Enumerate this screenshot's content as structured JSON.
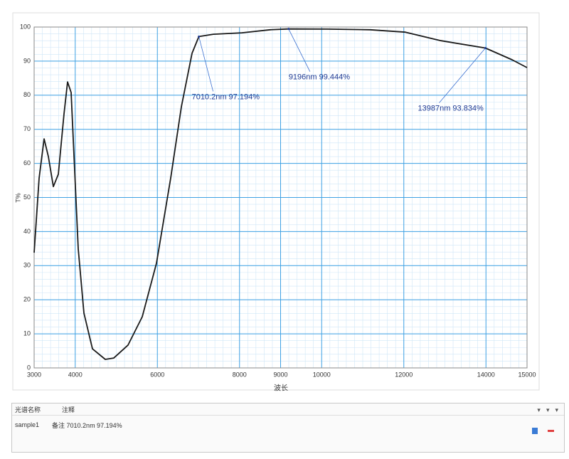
{
  "chart_data": {
    "type": "line",
    "x_label": "波长",
    "y_label": "T%",
    "x": [
      3000,
      3121,
      3242,
      3346,
      3468,
      3589,
      3727,
      3814,
      3900,
      3987,
      4074,
      4212,
      4420,
      4732,
      4939,
      5286,
      5632,
      5978,
      6325,
      6584,
      6844,
      7010.2,
      7364,
      8056,
      8749,
      9196,
      10134,
      11173,
      12039,
      12905,
      13987,
      14636,
      15000
    ],
    "values": [
      33.8,
      55.7,
      67.2,
      62,
      53.2,
      56.8,
      74.5,
      83.9,
      80.8,
      57.8,
      34.9,
      16.1,
      5.6,
      2.5,
      2.9,
      6.7,
      15,
      30.7,
      55.7,
      76.6,
      92.3,
      97.194,
      97.9,
      98.3,
      99.2,
      99.444,
      99.4,
      99.2,
      98.5,
      96.0,
      93.834,
      90.4,
      88.1
    ],
    "color": "#1a1a1a",
    "xlim": [
      3000,
      15000
    ],
    "ylim": [
      0,
      100
    ],
    "xticks": [
      3000,
      4000,
      6000,
      8000,
      9000,
      10000,
      12000,
      14000,
      15000
    ],
    "yticks": [
      0,
      10,
      20,
      30,
      40,
      50,
      60,
      70,
      80,
      90,
      100
    ],
    "grid": true,
    "annotations": [
      {
        "text": "7010.2nm  97.194%",
        "x": 7010.2,
        "y": 97.194
      },
      {
        "text": "9196nm  99.444%",
        "x": 9196,
        "y": 99.444
      },
      {
        "text": "13987nm  93.834%",
        "x": 13987,
        "y": 93.834
      }
    ]
  },
  "panel": {
    "headers": [
      "光谱名称",
      "注释"
    ],
    "row": [
      "sample1",
      "备注 7010.2nm 97.194%"
    ]
  }
}
